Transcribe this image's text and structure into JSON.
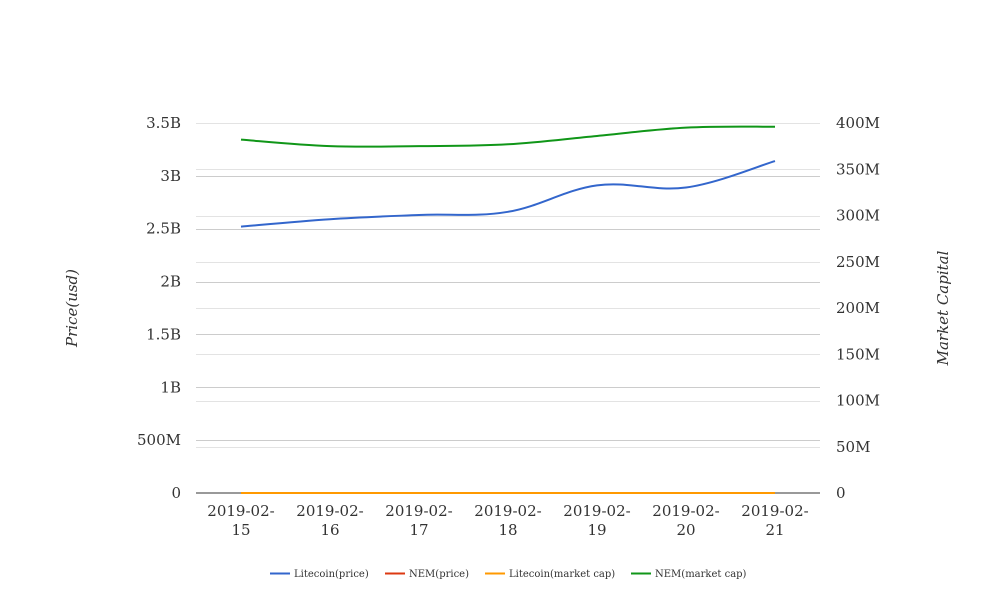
{
  "chart_data": {
    "type": "line",
    "categories": [
      "2019-02-15",
      "2019-02-16",
      "2019-02-17",
      "2019-02-18",
      "2019-02-19",
      "2019-02-20",
      "2019-02-21"
    ],
    "category_lines": [
      [
        "2019-02-",
        "15"
      ],
      [
        "2019-02-",
        "16"
      ],
      [
        "2019-02-",
        "17"
      ],
      [
        "2019-02-",
        "18"
      ],
      [
        "2019-02-",
        "19"
      ],
      [
        "2019-02-",
        "20"
      ],
      [
        "2019-02-",
        "21"
      ]
    ],
    "y_left": {
      "label": "Price(usd)",
      "range": [
        0,
        3500000000
      ],
      "ticks": [
        0,
        500000000,
        1000000000,
        1500000000,
        2000000000,
        2500000000,
        3000000000,
        3500000000
      ],
      "tick_labels": [
        "0",
        "500M",
        "1B",
        "1.5B",
        "2B",
        "2.5B",
        "3B",
        "3.5B"
      ]
    },
    "y_right": {
      "label": "Market Capital",
      "range": [
        0,
        400000000
      ],
      "ticks": [
        0,
        50000000,
        100000000,
        150000000,
        200000000,
        250000000,
        300000000,
        350000000,
        400000000
      ],
      "tick_labels": [
        "0",
        "50M",
        "100M",
        "150M",
        "200M",
        "250M",
        "300M",
        "350M",
        "400M"
      ]
    },
    "series": [
      {
        "name": "Litecoin(price)",
        "axis": "left",
        "color": "#3366cc",
        "values": [
          2520000000,
          2590000000,
          2630000000,
          2660000000,
          2910000000,
          2890000000,
          3140000000
        ]
      },
      {
        "name": "NEM(price)",
        "axis": "left",
        "color": "#dc3912",
        "values": [
          0,
          0,
          0,
          0,
          0,
          0,
          0
        ]
      },
      {
        "name": "Litecoin(market cap)",
        "axis": "right",
        "color": "#ff9900",
        "values": [
          0,
          0,
          0,
          0,
          0,
          0,
          0
        ]
      },
      {
        "name": "NEM(market cap)",
        "axis": "right",
        "color": "#109618",
        "values": [
          382000000,
          375000000,
          375000000,
          377000000,
          386000000,
          395000000,
          396000000
        ]
      }
    ],
    "grid": true,
    "legend_position": "bottom"
  }
}
